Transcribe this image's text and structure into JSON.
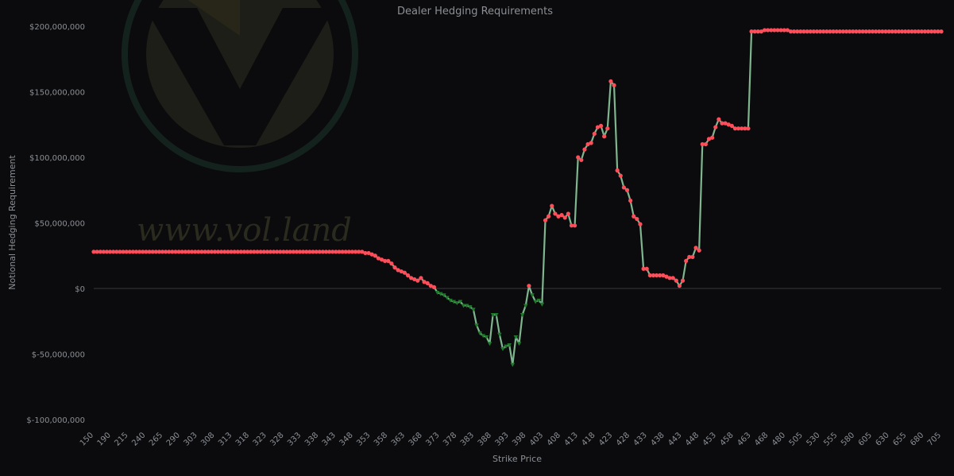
{
  "chart_data": {
    "type": "line",
    "title": "Dealer Hedging Requirements",
    "xlabel": "Strike Price",
    "ylabel": "Notional Hedging Requirement",
    "watermark": "www.vol.land",
    "ylim": [
      -100000000,
      200000000
    ],
    "yticks": [
      200000000,
      150000000,
      100000000,
      50000000,
      0,
      -50000000,
      -100000000
    ],
    "ytick_labels": [
      "$200,000,000",
      "$150,000,000",
      "$100,000,000",
      "$50,000,000",
      "$0",
      "$-50,000,000",
      "$-100,000,000"
    ],
    "xtick_labels": [
      "150",
      "190",
      "215",
      "240",
      "265",
      "290",
      "303",
      "308",
      "313",
      "318",
      "323",
      "328",
      "333",
      "338",
      "343",
      "348",
      "353",
      "358",
      "363",
      "368",
      "373",
      "378",
      "383",
      "388",
      "393",
      "398",
      "403",
      "408",
      "413",
      "418",
      "423",
      "428",
      "433",
      "438",
      "443",
      "448",
      "453",
      "458",
      "463",
      "468",
      "480",
      "505",
      "530",
      "555",
      "580",
      "605",
      "630",
      "655",
      "680",
      "705"
    ],
    "colors": {
      "positive_marker": "#ff4d5a",
      "negative_marker": "#1e7a2a",
      "line": "#7fb58f",
      "background": "#0b0b0d",
      "zero_line": "#3a3a3a"
    },
    "series": [
      {
        "values": [
          28000000,
          28000000,
          28000000,
          28000000,
          28000000,
          28000000,
          28000000,
          28000000,
          28000000,
          28000000,
          28000000,
          28000000,
          28000000,
          28000000,
          28000000,
          28000000,
          28000000,
          28000000,
          28000000,
          28000000,
          28000000,
          28000000,
          28000000,
          28000000,
          28000000,
          28000000,
          28000000,
          28000000,
          28000000,
          28000000,
          28000000,
          28000000,
          28000000,
          28000000,
          28000000,
          28000000,
          28000000,
          28000000,
          28000000,
          28000000,
          28000000,
          28000000,
          28000000,
          28000000,
          28000000,
          28000000,
          28000000,
          28000000,
          28000000,
          28000000,
          28000000,
          28000000,
          28000000,
          28000000,
          28000000,
          28000000,
          28000000,
          28000000,
          28000000,
          28000000,
          28000000,
          28000000,
          28000000,
          28000000,
          28000000,
          28000000,
          28000000,
          28000000,
          28000000,
          28000000,
          28000000,
          28000000,
          28000000,
          28000000,
          28000000,
          28000000,
          28000000,
          28000000,
          28000000,
          28000000,
          28000000,
          28000000,
          28000000,
          27000000,
          27000000,
          26000000,
          25000000,
          23000000,
          22000000,
          21000000,
          21000000,
          19000000,
          16000000,
          14000000,
          13000000,
          12000000,
          10000000,
          8000000,
          7000000,
          6000000,
          8000000,
          5000000,
          4000000,
          2000000,
          1000000,
          -3000000,
          -4000000,
          -5000000,
          -7000000,
          -9000000,
          -10000000,
          -11000000,
          -10000000,
          -13000000,
          -13000000,
          -14000000,
          -16000000,
          -28000000,
          -34000000,
          -36000000,
          -37000000,
          -42000000,
          -20000000,
          -20000000,
          -35000000,
          -46000000,
          -44000000,
          -43000000,
          -58000000,
          -37000000,
          -42000000,
          -20000000,
          -13000000,
          2000000,
          -5000000,
          -10000000,
          -9000000,
          -12000000,
          52000000,
          55000000,
          63000000,
          57000000,
          55000000,
          56000000,
          54000000,
          57000000,
          48000000,
          48000000,
          100000000,
          98000000,
          106000000,
          110000000,
          111000000,
          118000000,
          123000000,
          124000000,
          116000000,
          122000000,
          158000000,
          155000000,
          90000000,
          86000000,
          77000000,
          75000000,
          67000000,
          55000000,
          53000000,
          49000000,
          15000000,
          15000000,
          10000000,
          10000000,
          10000000,
          10000000,
          10000000,
          9000000,
          8000000,
          8000000,
          6000000,
          2000000,
          6000000,
          21000000,
          24000000,
          24000000,
          31000000,
          29000000,
          110000000,
          110000000,
          114000000,
          115000000,
          123000000,
          129000000,
          126000000,
          126000000,
          125000000,
          124000000,
          122000000,
          122000000,
          122000000,
          122000000,
          122000000,
          196000000,
          196000000,
          196000000,
          196000000,
          197000000,
          197000000,
          197000000,
          197000000,
          197000000,
          197000000,
          197000000,
          197000000,
          196000000,
          196000000,
          196000000,
          196000000,
          196000000,
          196000000,
          196000000,
          196000000,
          196000000,
          196000000,
          196000000,
          196000000,
          196000000,
          196000000,
          196000000,
          196000000,
          196000000,
          196000000,
          196000000,
          196000000,
          196000000,
          196000000,
          196000000,
          196000000,
          196000000,
          196000000,
          196000000,
          196000000,
          196000000,
          196000000,
          196000000,
          196000000,
          196000000,
          196000000,
          196000000,
          196000000,
          196000000,
          196000000,
          196000000,
          196000000,
          196000000,
          196000000,
          196000000,
          196000000,
          196000000,
          196000000,
          196000000
        ]
      }
    ]
  }
}
